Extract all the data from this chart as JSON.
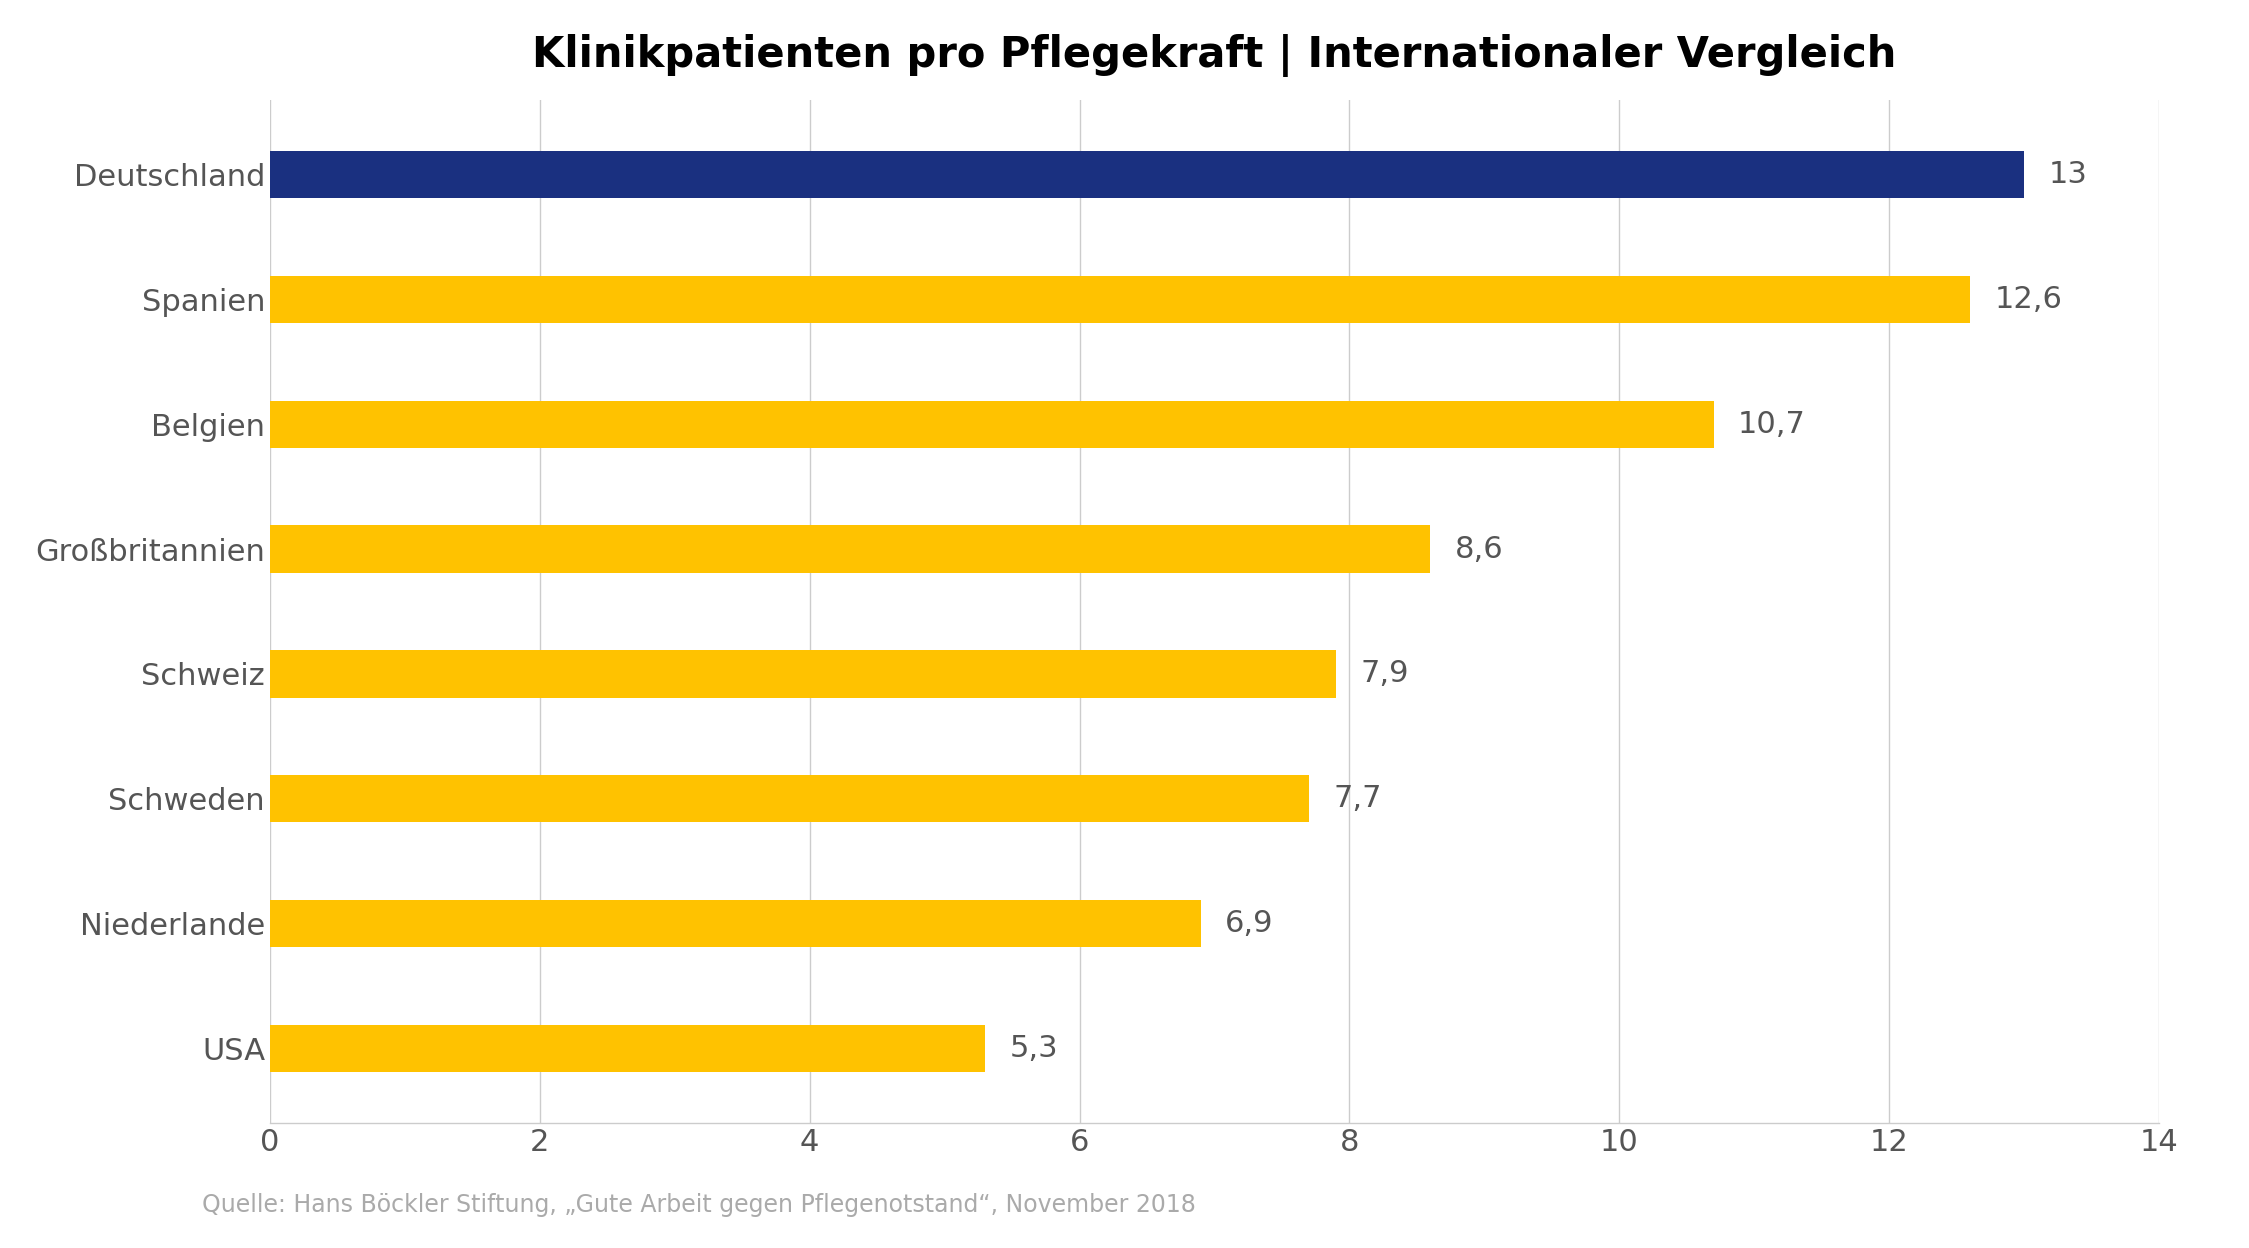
{
  "title": "Klinikpatienten pro Pflegekraft | Internationaler Vergleich",
  "categories": [
    "Deutschland",
    "Spanien",
    "Belgien",
    "Großbritannien",
    "Schweiz",
    "Schweden",
    "Niederlande",
    "USA"
  ],
  "values": [
    13,
    12.6,
    10.7,
    8.6,
    7.9,
    7.7,
    6.9,
    5.3
  ],
  "labels": [
    "13",
    "12,6",
    "10,7",
    "8,6",
    "7,9",
    "7,7",
    "6,9",
    "5,3"
  ],
  "bar_colors": [
    "#1a3080",
    "#FFC200",
    "#FFC200",
    "#FFC200",
    "#FFC200",
    "#FFC200",
    "#FFC200",
    "#FFC200"
  ],
  "xlim": [
    0,
    14
  ],
  "xticks": [
    0,
    2,
    4,
    6,
    8,
    10,
    12,
    14
  ],
  "title_fontsize": 30,
  "tick_fontsize": 22,
  "label_fontsize": 22,
  "source_text": "Quelle: Hans Böckler Stiftung, „Gute Arbeit gegen Pflegenotstand“, November 2018",
  "source_fontsize": 17,
  "background_color": "#ffffff",
  "grid_color": "#cccccc",
  "text_color": "#555555",
  "bar_height": 0.38
}
